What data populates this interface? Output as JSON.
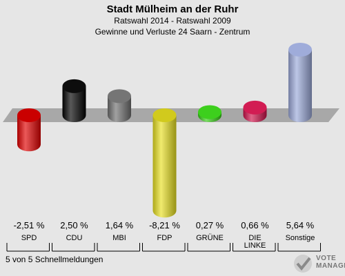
{
  "header": {
    "title": "Stadt Mülheim an der Ruhr",
    "subtitle": "Ratswahl 2014 - Ratswahl 2009",
    "description": "Gewinne und Verluste 24 Saarn - Zentrum"
  },
  "footer": {
    "status": "5 von 5 Schnellmeldungen",
    "logo_line1": "VOTE",
    "logo_line2": "MANAGER"
  },
  "chart_data": {
    "type": "bar",
    "categories": [
      "SPD",
      "CDU",
      "MBI",
      "FDP",
      "GRÜNE",
      "DIE LINKE",
      "Sonstige"
    ],
    "category_lines": [
      [
        "SPD"
      ],
      [
        "CDU"
      ],
      [
        "MBI"
      ],
      [
        "FDP"
      ],
      [
        "GRÜNE"
      ],
      [
        "DIE",
        "LINKE"
      ],
      [
        "Sonstige"
      ]
    ],
    "values": [
      -2.51,
      2.5,
      1.64,
      -8.21,
      0.27,
      0.66,
      5.64
    ],
    "value_labels": [
      "-2,51 %",
      "2,50 %",
      "1,64 %",
      "-8,21 %",
      "0,27 %",
      "0,66 %",
      "5,64 %"
    ],
    "colors": [
      "#e00000",
      "#000000",
      "#6e6e6e",
      "#e8e020",
      "#33cc11",
      "#d0104a",
      "#9aa8d8"
    ],
    "ylim": [
      -8.21,
      5.64
    ]
  }
}
